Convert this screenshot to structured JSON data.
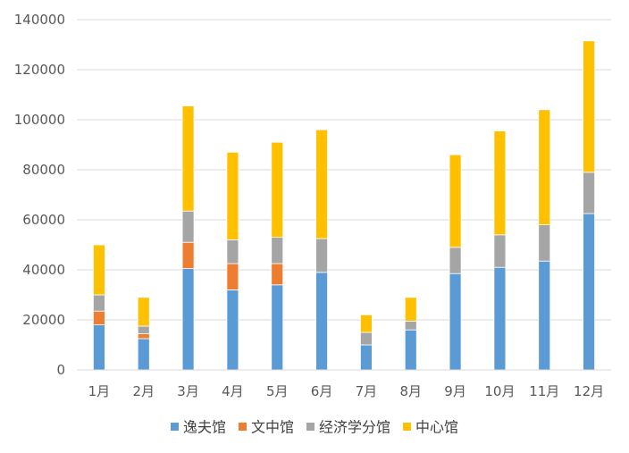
{
  "chart_data": {
    "type": "bar",
    "stacked": true,
    "categories": [
      "1月",
      "2月",
      "3月",
      "4月",
      "5月",
      "6月",
      "7月",
      "8月",
      "9月",
      "10月",
      "11月",
      "12月"
    ],
    "series": [
      {
        "name": "逸夫馆",
        "color": "#5B9BD5",
        "values": [
          18000,
          12500,
          40500,
          32000,
          34000,
          39000,
          10000,
          16000,
          38500,
          41000,
          43500,
          62500
        ]
      },
      {
        "name": "文中馆",
        "color": "#ED7D31",
        "values": [
          5500,
          2000,
          10500,
          10500,
          8500,
          0,
          0,
          0,
          0,
          0,
          0,
          0
        ]
      },
      {
        "name": "经济学分馆",
        "color": "#A5A5A5",
        "values": [
          6500,
          3000,
          12500,
          9500,
          10500,
          13500,
          5000,
          3500,
          10500,
          13000,
          14500,
          16500
        ]
      },
      {
        "name": "中心馆",
        "color": "#FFC000",
        "values": [
          20000,
          11500,
          42000,
          35000,
          38000,
          43500,
          7000,
          9500,
          37000,
          41500,
          46000,
          52500
        ]
      }
    ],
    "ylim": [
      0,
      140000
    ],
    "yticks": [
      0,
      20000,
      40000,
      60000,
      80000,
      100000,
      120000,
      140000
    ],
    "ytick_labels": [
      "0",
      "20000",
      "40000",
      "60000",
      "80000",
      "100000",
      "120000",
      "140000"
    ],
    "grid": true,
    "legend_position": "bottom"
  }
}
